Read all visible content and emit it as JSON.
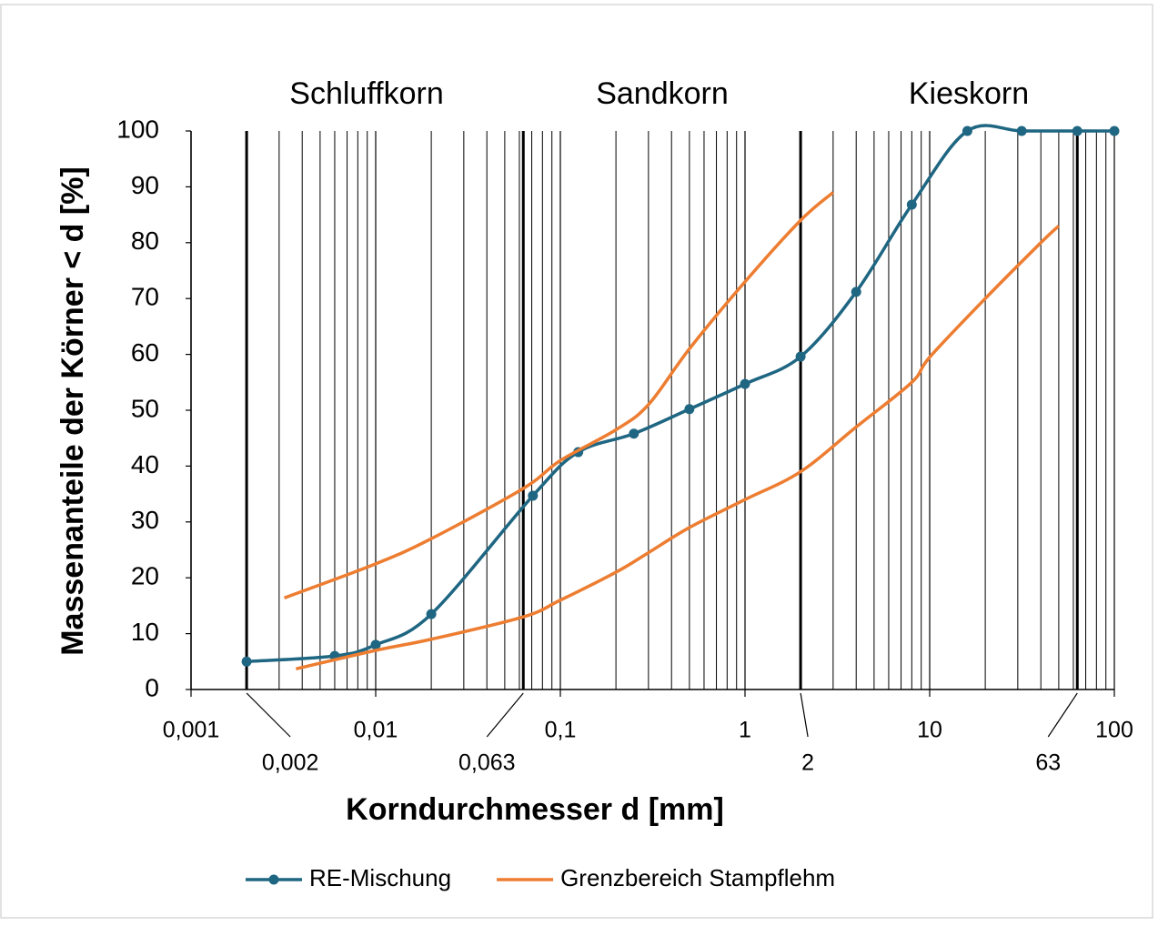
{
  "chart_data": {
    "type": "line",
    "xlabel": "Korndurchmesser d [mm]",
    "ylabel": "Massenanteile der Körner < d [%]",
    "log_x": true,
    "xlim": [
      0.001,
      100
    ],
    "ylim": [
      0,
      100
    ],
    "xticks": [
      {
        "value": 0.001,
        "label": "0,001"
      },
      {
        "value": 0.01,
        "label": "0,01"
      },
      {
        "value": 0.1,
        "label": "0,1"
      },
      1,
      10,
      100
    ],
    "yticks": [
      0,
      10,
      20,
      30,
      40,
      50,
      60,
      70,
      80,
      90,
      100
    ],
    "boundaries": [
      {
        "value": 0.002,
        "label": "0,002"
      },
      {
        "value": 0.063,
        "label": "0,063"
      },
      2,
      63
    ],
    "zones": [
      "Schluffkorn",
      "Sandkorn",
      "Kieskorn"
    ],
    "minor_grid": true,
    "legend": "bottom",
    "series": [
      {
        "name": "RE-Mischung",
        "color": "#1f6682",
        "markers": true,
        "curves": [
          {
            "x": [
              0.002,
              0.006,
              0.01,
              0.02,
              0.071,
              0.125,
              0.25,
              0.5,
              1,
              2,
              4,
              8,
              16,
              31.5,
              63,
              100
            ],
            "values": [
              5,
              6,
              8,
              13.5,
              34.7,
              42.5,
              45.8,
              50.2,
              54.7,
              59.6,
              71.2,
              86.8,
              100,
              100,
              100,
              100
            ]
          }
        ]
      },
      {
        "name": "Grenzbereich Stampflehm",
        "color": "#ed7d31",
        "markers": false,
        "curves": [
          {
            "x": [
              0.0032,
              0.01,
              0.02,
              0.063,
              0.1,
              0.2,
              0.3,
              0.5,
              1,
              2,
              3
            ],
            "values": [
              16.4,
              22.5,
              27,
              36,
              41,
              46.5,
              51,
              61,
              73,
              84,
              89
            ]
          },
          {
            "x": [
              0.0037,
              0.01,
              0.02,
              0.063,
              0.1,
              0.2,
              0.3,
              0.5,
              1,
              2,
              4,
              8,
              10,
              20,
              40,
              50
            ],
            "values": [
              3.7,
              7,
              9,
              13,
              16,
              21,
              24.5,
              29,
              34,
              39,
              47,
              55,
              59.5,
              70,
              80,
              83
            ]
          }
        ]
      }
    ]
  }
}
